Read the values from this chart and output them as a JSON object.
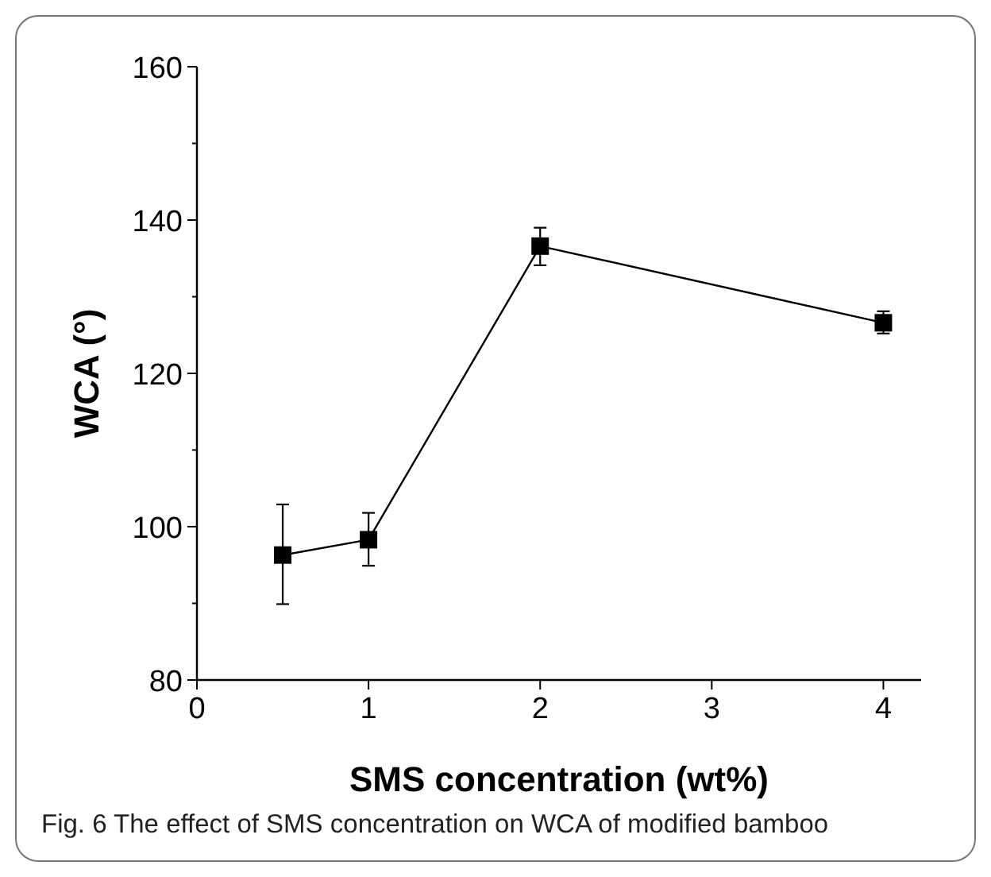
{
  "chart_data": {
    "type": "line",
    "xlabel": "SMS concentration (wt%)",
    "ylabel": "WCA (°)",
    "annotations": [
      "Fig. 6  The effect of SMS concentration on WCA of modified bamboo"
    ],
    "x": [
      0.5,
      1,
      2,
      4
    ],
    "series": [
      {
        "color": "#000000",
        "values": [
          96.3,
          98.3,
          136.6,
          126.6
        ],
        "errors": [
          [
            89.9,
            102.9
          ],
          [
            94.9,
            101.8
          ],
          [
            134.1,
            139.0
          ],
          [
            125.2,
            128.1
          ]
        ]
      }
    ],
    "xlim": [
      0,
      4.22
    ],
    "xticks": [
      0,
      1,
      2,
      3,
      4
    ],
    "ylim": [
      80,
      160
    ],
    "yticks": [
      80,
      {
        "value": 90,
        "label": null
      },
      100,
      {
        "value": 110,
        "label": null
      },
      120,
      {
        "value": 130,
        "label": null
      },
      140,
      {
        "value": 150,
        "label": null
      },
      160
    ],
    "marker": "square",
    "line_style": "solid"
  }
}
